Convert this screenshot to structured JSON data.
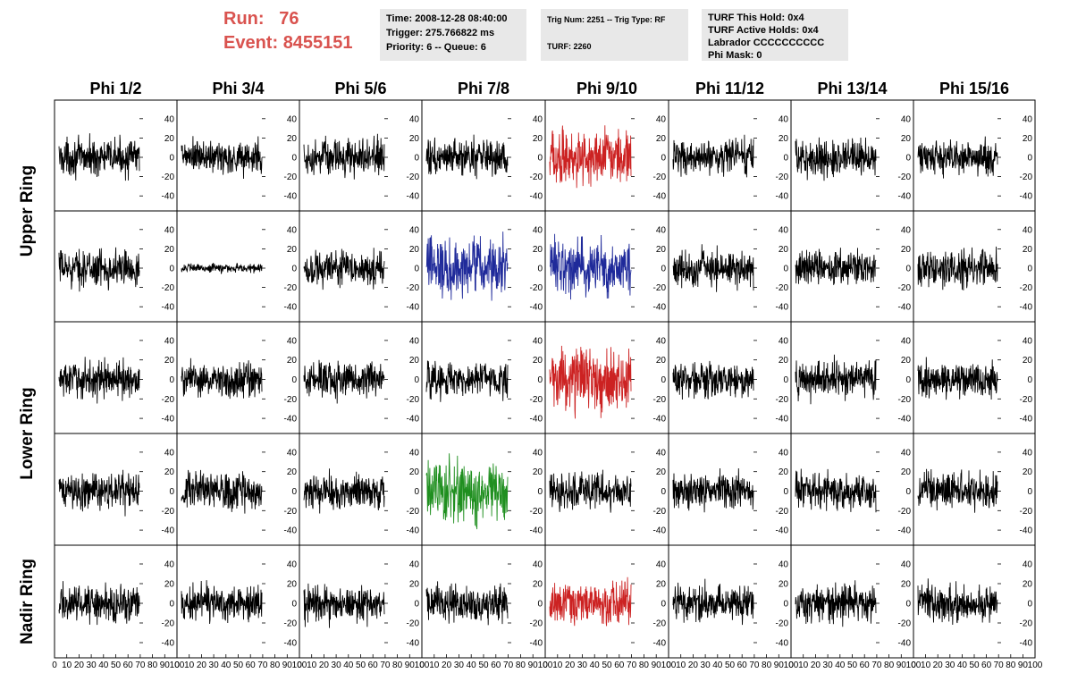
{
  "header": {
    "run_label": "Run:",
    "run_value": "76",
    "event_label": "Event:",
    "event_value": "8455151",
    "accent_color": "#d9534f"
  },
  "info_time": {
    "time": "Time: 2008-12-28 08:40:00",
    "trigger": "Trigger: 275.766822 ms",
    "priority": "Priority: 6 -- Queue: 6"
  },
  "info_trig": {
    "trig": "Trig Num: 2251 -- Trig Type: RF",
    "turf": "TURF: 2260"
  },
  "info_turf": {
    "hold": "TURF This Hold: 0x4",
    "active": "TURF Active Holds: 0x4",
    "labrador": "Labrador CCCCCCCCCC",
    "phimask": "Phi Mask: 0"
  },
  "chart_data": {
    "type": "line",
    "columns": [
      "Phi 1/2",
      "Phi 3/4",
      "Phi 5/6",
      "Phi 7/8",
      "Phi 9/10",
      "Phi 11/12",
      "Phi 13/14",
      "Phi 15/16"
    ],
    "ring_labels": [
      "Upper Ring",
      "Lower Ring",
      "Nadir Ring"
    ],
    "rows": 5,
    "x_ticks": [
      "0",
      "10",
      "20",
      "30",
      "40",
      "50",
      "60",
      "70",
      "80",
      "90",
      "100"
    ],
    "y_ticks": [
      "-40",
      "-20",
      "0",
      "20",
      "40"
    ],
    "xlim": [
      0,
      100
    ],
    "ylim": [
      -50,
      50
    ],
    "colors": {
      "default": "#000000",
      "red": "#cc2222",
      "blue": "#1f2a9a",
      "green": "#1f8f1f"
    },
    "highlights": [
      {
        "row": 0,
        "col": 4,
        "color": "red",
        "amp": 18
      },
      {
        "row": 1,
        "col": 3,
        "color": "blue",
        "amp": 20
      },
      {
        "row": 1,
        "col": 4,
        "color": "blue",
        "amp": 18
      },
      {
        "row": 2,
        "col": 4,
        "color": "red",
        "amp": 20
      },
      {
        "row": 3,
        "col": 3,
        "color": "green",
        "amp": 20
      },
      {
        "row": 4,
        "col": 4,
        "color": "red",
        "amp": 14
      }
    ],
    "quiet": [
      {
        "row": 1,
        "col": 1,
        "amp": 3
      }
    ],
    "default_amp": 12
  }
}
